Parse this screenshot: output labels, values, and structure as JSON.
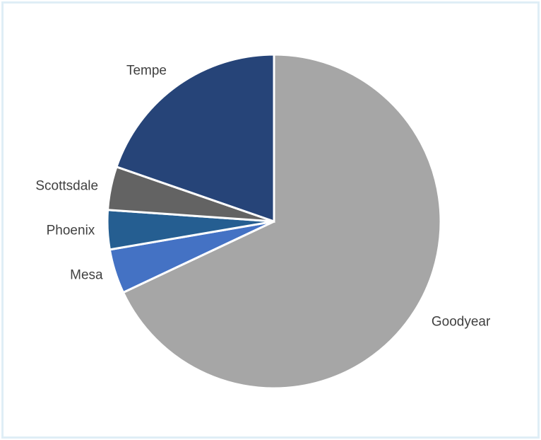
{
  "chart_data": {
    "type": "pie",
    "title": "",
    "start": "top",
    "direction": "clockwise",
    "slices": [
      {
        "label": "Goodyear",
        "value": 68.0,
        "color": "#a6a6a6"
      },
      {
        "label": "Mesa",
        "value": 4.3,
        "color": "#4472c4"
      },
      {
        "label": "Phoenix",
        "value": 3.8,
        "color": "#255e91"
      },
      {
        "label": "Scottsdale",
        "value": 4.2,
        "color": "#636363"
      },
      {
        "label": "Tempe",
        "value": 19.7,
        "color": "#264478"
      }
    ],
    "legend": "none",
    "data_labels": "category names outside slices"
  }
}
